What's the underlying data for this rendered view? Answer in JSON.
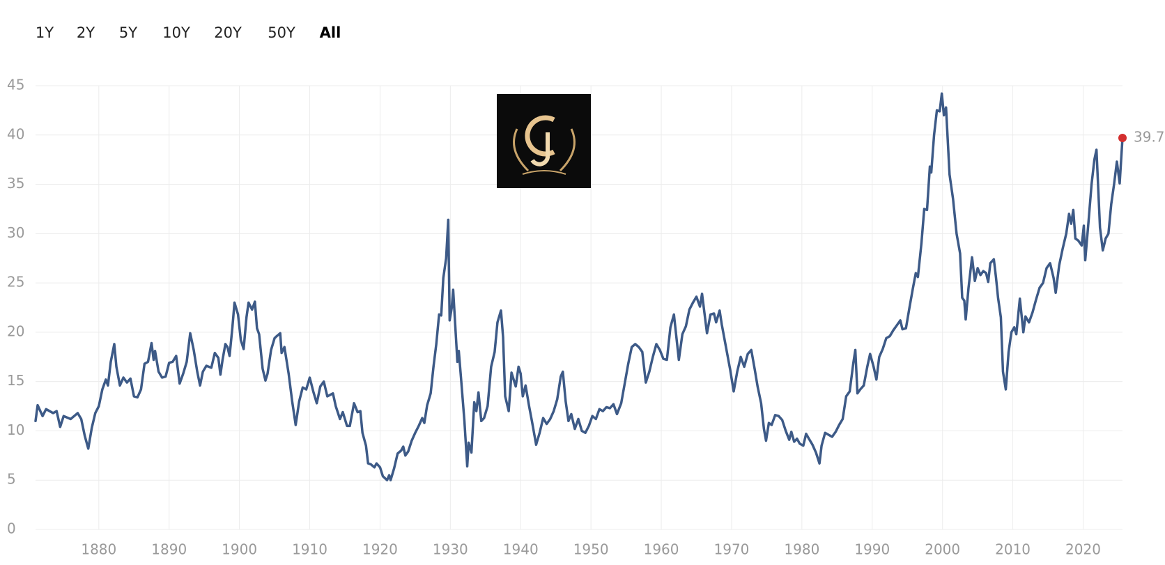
{
  "range_buttons": [
    "1Y",
    "2Y",
    "5Y",
    "10Y",
    "20Y",
    "50Y",
    "All"
  ],
  "selected_range": "All",
  "chart_data": {
    "type": "line",
    "color": "#3d5a87",
    "end_marker_color": "#d32f2f",
    "grid": true,
    "xlim": [
      1871,
      2025.6
    ],
    "ylim": [
      0,
      45
    ],
    "xticks": [
      1880,
      1890,
      1900,
      1910,
      1920,
      1930,
      1940,
      1950,
      1960,
      1970,
      1980,
      1990,
      2000,
      2010,
      2020
    ],
    "yticks": [
      0,
      5,
      10,
      15,
      20,
      25,
      30,
      35,
      40,
      45
    ],
    "x": [
      1871,
      1871.3,
      1872,
      1872.5,
      1873.5,
      1874,
      1874.5,
      1875,
      1876,
      1877,
      1877.5,
      1878,
      1878.5,
      1879,
      1879.5,
      1880,
      1880.5,
      1881,
      1881.3,
      1881.7,
      1882.2,
      1882.5,
      1883,
      1883.5,
      1884,
      1884.5,
      1885,
      1885.5,
      1886,
      1886.5,
      1887,
      1887.5,
      1887.8,
      1888,
      1888.5,
      1889,
      1889.5,
      1890,
      1890.5,
      1891,
      1891.5,
      1892,
      1892.5,
      1893,
      1893.5,
      1894,
      1894.4,
      1894.8,
      1895.3,
      1896,
      1896.5,
      1897,
      1897.3,
      1897.6,
      1898,
      1898.3,
      1898.6,
      1899,
      1899.3,
      1899.8,
      1900.2,
      1900.6,
      1901,
      1901.3,
      1901.8,
      1902.2,
      1902.5,
      1902.8,
      1903.3,
      1903.7,
      1904,
      1904.5,
      1905,
      1905.3,
      1905.8,
      1906,
      1906.4,
      1907,
      1907.5,
      1908,
      1908.5,
      1909,
      1909.5,
      1910,
      1910.5,
      1911,
      1911.5,
      1912,
      1912.5,
      1913.3,
      1913.7,
      1914.3,
      1914.7,
      1915.3,
      1915.7,
      1916.3,
      1916.8,
      1917.2,
      1917.5,
      1918,
      1918.3,
      1918.7,
      1919.2,
      1919.5,
      1920,
      1920.4,
      1921,
      1921.3,
      1921.5,
      1922,
      1922.5,
      1923,
      1923.3,
      1923.6,
      1924,
      1924.5,
      1925,
      1925.5,
      1926,
      1926.3,
      1926.7,
      1927.2,
      1927.6,
      1928,
      1928.4,
      1928.7,
      1929,
      1929.4,
      1929.7,
      1929.9,
      1930.2,
      1930.4,
      1931,
      1931.2,
      1931.5,
      1932,
      1932.4,
      1932.6,
      1933,
      1933.4,
      1933.7,
      1934,
      1934.4,
      1934.8,
      1935.3,
      1935.8,
      1936.3,
      1936.7,
      1937.2,
      1937.5,
      1937.8,
      1938.3,
      1938.7,
      1939.3,
      1939.7,
      1940,
      1940.3,
      1940.7,
      1941.2,
      1941.6,
      1942.2,
      1942.7,
      1943.2,
      1943.7,
      1944.2,
      1944.7,
      1945.2,
      1945.7,
      1946,
      1946.4,
      1946.8,
      1947.2,
      1947.7,
      1948.2,
      1948.7,
      1949.2,
      1949.7,
      1950.2,
      1950.7,
      1951.2,
      1951.7,
      1952.2,
      1952.7,
      1953.2,
      1953.7,
      1954.3,
      1954.8,
      1955.3,
      1955.8,
      1956.3,
      1956.8,
      1957.3,
      1957.8,
      1958.3,
      1958.8,
      1959.3,
      1959.8,
      1960.3,
      1960.8,
      1961.3,
      1961.8,
      1962.5,
      1963,
      1963.5,
      1964,
      1964.5,
      1965,
      1965.5,
      1965.8,
      1966.5,
      1967,
      1967.5,
      1967.8,
      1968.3,
      1968.6,
      1969.2,
      1969.8,
      1970.3,
      1970.8,
      1971.3,
      1971.8,
      1972.3,
      1972.8,
      1973.3,
      1973.7,
      1974.2,
      1974.6,
      1974.9,
      1975.3,
      1975.7,
      1976.2,
      1976.7,
      1977.2,
      1977.7,
      1978.2,
      1978.5,
      1978.9,
      1979.3,
      1979.7,
      1980.2,
      1980.6,
      1981,
      1981.5,
      1982,
      1982.5,
      1982.8,
      1983.3,
      1983.8,
      1984.3,
      1984.8,
      1985.3,
      1985.8,
      1986.3,
      1986.8,
      1987.3,
      1987.6,
      1987.9,
      1988.3,
      1988.8,
      1989.3,
      1989.7,
      1990.2,
      1990.6,
      1991,
      1991.5,
      1992,
      1992.5,
      1993,
      1993.5,
      1994,
      1994.3,
      1994.8,
      1995.3,
      1995.8,
      1996.2,
      1996.5,
      1997,
      1997.4,
      1997.8,
      1998.2,
      1998.4,
      1998.8,
      1999.2,
      1999.6,
      1999.9,
      2000.2,
      2000.5,
      2001,
      2001.5,
      2002,
      2002.5,
      2002.8,
      2003.1,
      2003.3,
      2003.7,
      2004.2,
      2004.6,
      2005,
      2005.4,
      2005.8,
      2006.2,
      2006.5,
      2006.8,
      2007.3,
      2007.6,
      2007.9,
      2008.3,
      2008.6,
      2009,
      2009.4,
      2009.8,
      2010.2,
      2010.5,
      2011,
      2011.5,
      2011.8,
      2012.3,
      2012.8,
      2013.3,
      2013.8,
      2014.3,
      2014.8,
      2015.3,
      2015.8,
      2016.1,
      2016.6,
      2017.1,
      2017.6,
      2018,
      2018.3,
      2018.6,
      2018.9,
      2019.3,
      2019.8,
      2020.1,
      2020.3,
      2020.8,
      2021.2,
      2021.6,
      2021.9,
      2022.4,
      2022.8,
      2023.2,
      2023.6,
      2024,
      2024.4,
      2024.8,
      2025.2,
      2025.6
    ],
    "values": [
      11.0,
      12.6,
      11.5,
      12.2,
      11.8,
      12.0,
      10.4,
      11.5,
      11.2,
      11.8,
      11.2,
      9.5,
      8.2,
      10.3,
      11.8,
      12.5,
      14.2,
      15.2,
      14.6,
      17.0,
      18.8,
      16.5,
      14.6,
      15.4,
      14.9,
      15.3,
      13.5,
      13.4,
      14.2,
      16.8,
      17.0,
      18.9,
      17.2,
      18.1,
      16.0,
      15.4,
      15.5,
      16.9,
      17.0,
      17.6,
      14.8,
      15.8,
      17.0,
      19.9,
      18.2,
      16.0,
      14.6,
      16.0,
      16.6,
      16.4,
      17.9,
      17.4,
      15.7,
      17.2,
      18.8,
      18.5,
      17.6,
      20.5,
      23.0,
      21.8,
      19.2,
      18.3,
      21.5,
      23.0,
      22.3,
      23.1,
      20.4,
      19.8,
      16.3,
      15.1,
      15.8,
      18.2,
      19.4,
      19.6,
      19.9,
      17.9,
      18.5,
      15.8,
      13.0,
      10.6,
      13.0,
      14.4,
      14.2,
      15.4,
      14.0,
      12.8,
      14.5,
      15.0,
      13.5,
      13.8,
      12.5,
      11.2,
      11.9,
      10.5,
      10.5,
      12.8,
      11.9,
      12.0,
      9.8,
      8.5,
      6.7,
      6.6,
      6.3,
      6.7,
      6.3,
      5.4,
      5.0,
      5.5,
      5.0,
      6.2,
      7.7,
      8.0,
      8.4,
      7.5,
      7.9,
      9.0,
      9.8,
      10.5,
      11.3,
      10.8,
      12.6,
      13.8,
      16.5,
      18.8,
      21.8,
      21.7,
      25.5,
      27.5,
      31.4,
      21.2,
      22.5,
      24.3,
      17.0,
      18.1,
      15.5,
      11.0,
      6.4,
      8.8,
      7.8,
      12.9,
      12.0,
      13.9,
      11.0,
      11.3,
      12.5,
      16.5,
      18.0,
      21.0,
      22.2,
      19.5,
      13.5,
      12.0,
      15.9,
      14.5,
      16.5,
      15.8,
      13.5,
      14.6,
      12.5,
      11.0,
      8.6,
      9.8,
      11.3,
      10.7,
      11.2,
      12.0,
      13.2,
      15.5,
      16.0,
      13.0,
      11.0,
      11.7,
      10.2,
      11.2,
      10.0,
      9.8,
      10.5,
      11.5,
      11.2,
      12.2,
      12.0,
      12.4,
      12.3,
      12.7,
      11.7,
      12.8,
      14.8,
      16.8,
      18.5,
      18.8,
      18.5,
      18.0,
      14.9,
      16.0,
      17.5,
      18.8,
      18.2,
      17.3,
      17.2,
      20.5,
      21.8,
      17.2,
      19.8,
      20.6,
      22.3,
      23.0,
      23.6,
      22.6,
      23.9,
      19.9,
      21.8,
      21.9,
      21.0,
      22.2,
      20.8,
      18.5,
      16.2,
      14.0,
      16.0,
      17.5,
      16.5,
      17.8,
      18.2,
      16.2,
      14.5,
      12.8,
      10.2,
      9.0,
      10.8,
      10.6,
      11.6,
      11.5,
      11.1,
      10.0,
      9.1,
      9.9,
      8.9,
      9.2,
      8.7,
      8.5,
      9.7,
      9.2,
      8.6,
      7.8,
      6.7,
      8.5,
      9.8,
      9.6,
      9.4,
      9.9,
      10.6,
      11.2,
      13.5,
      14.0,
      16.8,
      18.2,
      13.8,
      14.2,
      14.6,
      16.5,
      17.8,
      16.5,
      15.2,
      17.5,
      18.3,
      19.4,
      19.6,
      20.2,
      20.7,
      21.2,
      20.3,
      20.4,
      22.5,
      24.5,
      26.0,
      25.6,
      29.0,
      32.5,
      32.4,
      36.8,
      36.2,
      40.0,
      42.5,
      42.4,
      44.2,
      42.0,
      42.8,
      36.0,
      33.5,
      30.0,
      28.0,
      23.5,
      23.2,
      21.3,
      24.5,
      27.6,
      25.2,
      26.5,
      25.8,
      26.2,
      26.0,
      25.1,
      27.0,
      27.4,
      25.6,
      23.5,
      21.5,
      16.0,
      14.2,
      18.0,
      20.0,
      20.5,
      19.8,
      23.4,
      20.0,
      21.6,
      21.0,
      22.0,
      23.3,
      24.5,
      25.0,
      26.5,
      27.0,
      25.5,
      24.0,
      26.8,
      28.5,
      30.0,
      32.0,
      31.0,
      32.4,
      29.5,
      29.3,
      28.8,
      30.8,
      27.3,
      31.5,
      35.0,
      37.5,
      38.5,
      30.6,
      28.3,
      29.5,
      30.0,
      33.0,
      35.0,
      37.3,
      35.1,
      39.7
    ]
  }
}
